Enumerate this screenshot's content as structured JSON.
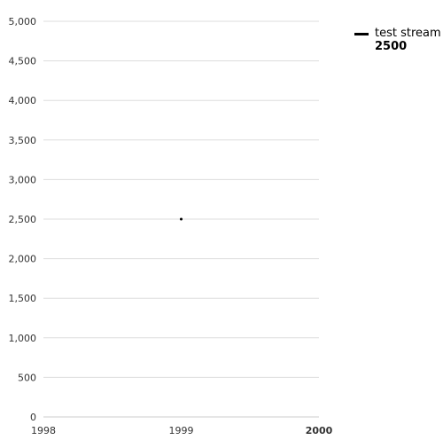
{
  "chart_data": {
    "type": "line",
    "title": "",
    "xlabel": "",
    "ylabel": "",
    "x_ticks": [
      "1998",
      "1999",
      "2000"
    ],
    "x_tick_values": [
      1998,
      1999,
      2000
    ],
    "y_ticks": [
      "0",
      "500",
      "1,000",
      "1,500",
      "2,000",
      "2,500",
      "3,000",
      "3,500",
      "4,000",
      "4,500",
      "5,000"
    ],
    "y_tick_values": [
      0,
      500,
      1000,
      1500,
      2000,
      2500,
      3000,
      3500,
      4000,
      4500,
      5000
    ],
    "xlim": [
      1998,
      2000
    ],
    "ylim": [
      0,
      5000
    ],
    "grid": "horizontal",
    "legend_position": "top-right",
    "series": [
      {
        "name": "test stream",
        "color": "#000000",
        "x": [
          1999
        ],
        "y": [
          2500
        ],
        "latest_value": "2500"
      }
    ]
  }
}
